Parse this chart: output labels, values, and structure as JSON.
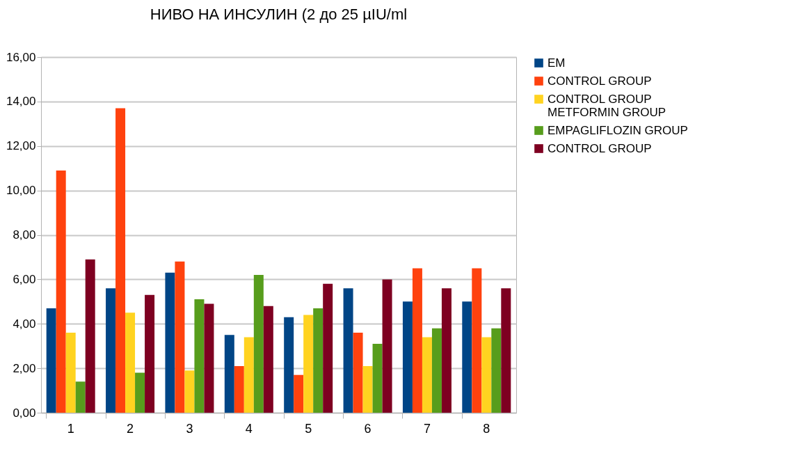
{
  "chart_data": {
    "type": "bar",
    "title": "НИВО НА ИНСУЛИН (2 до 25 µIU/ml",
    "categories": [
      "1",
      "2",
      "3",
      "4",
      "5",
      "6",
      "7",
      "8"
    ],
    "series": [
      {
        "name": "EM",
        "color": "#004586",
        "values": [
          4.7,
          5.6,
          6.3,
          3.5,
          4.3,
          5.6,
          5.0,
          5.0
        ]
      },
      {
        "name": "CONTROL GROUP",
        "color": "#ff420e",
        "values": [
          10.9,
          13.7,
          6.8,
          2.1,
          1.7,
          3.6,
          6.5,
          6.5
        ]
      },
      {
        "name": "CONTROL GROUP\nMETFORMIN GROUP",
        "color": "#ffd320",
        "values": [
          3.6,
          4.5,
          1.9,
          3.4,
          4.4,
          2.1,
          3.4,
          3.4
        ]
      },
      {
        "name": "EMPAGLIFLOZIN GROUP",
        "color": "#579d1c",
        "values": [
          1.4,
          1.8,
          5.1,
          6.2,
          4.7,
          3.1,
          3.8,
          3.8
        ]
      },
      {
        "name": "CONTROL GROUP",
        "color": "#7e0021",
        "values": [
          6.9,
          5.3,
          4.9,
          4.8,
          5.8,
          6.0,
          5.6,
          5.6
        ]
      }
    ],
    "ylim": [
      0,
      16
    ],
    "yticks": [
      {
        "value": 0,
        "label": "0,00"
      },
      {
        "value": 2,
        "label": "2,00"
      },
      {
        "value": 4,
        "label": "4,00"
      },
      {
        "value": 6,
        "label": "6,00"
      },
      {
        "value": 8,
        "label": "8,00"
      },
      {
        "value": 10,
        "label": "10,00"
      },
      {
        "value": 12,
        "label": "12,00"
      },
      {
        "value": 14,
        "label": "14,00"
      },
      {
        "value": 16,
        "label": "16,00"
      }
    ],
    "grid": "y",
    "legend": "right"
  }
}
